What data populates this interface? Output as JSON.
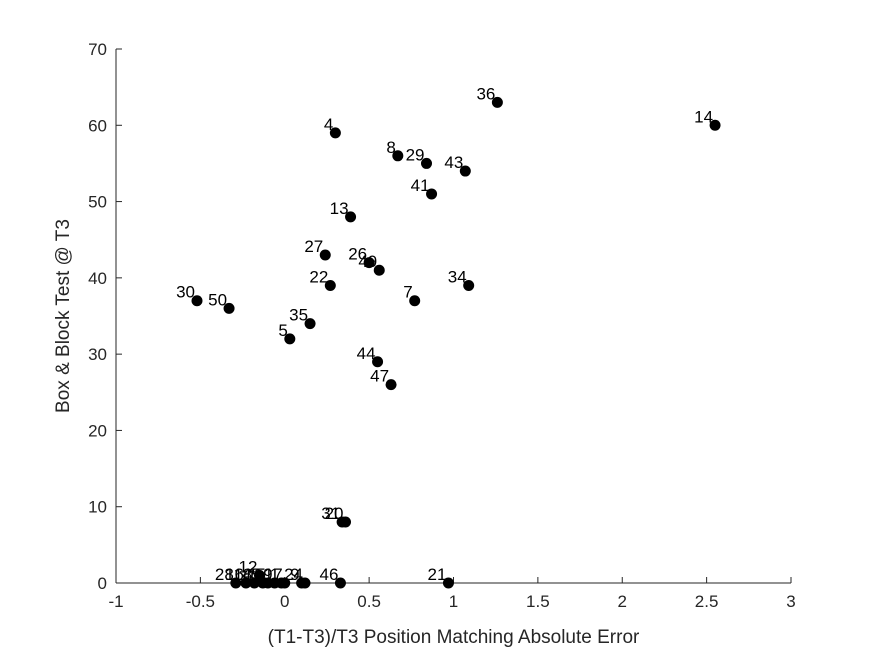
{
  "chart_data": {
    "type": "scatter",
    "xlabel": "(T1-T3)/T3 Position Matching Absolute Error",
    "ylabel": "Box & Block Test @ T3",
    "xlim": [
      -1,
      3
    ],
    "ylim": [
      0,
      70
    ],
    "xticks": [
      "-1",
      "-0.5",
      "0",
      "0.5",
      "1",
      "1.5",
      "2",
      "2.5",
      "3"
    ],
    "yticks": [
      "0",
      "10",
      "20",
      "30",
      "40",
      "50",
      "60",
      "70"
    ],
    "grid": false,
    "marker_color": "#000000",
    "points": [
      {
        "label": "36",
        "x": 1.26,
        "y": 63
      },
      {
        "label": "14",
        "x": 2.55,
        "y": 60
      },
      {
        "label": "4",
        "x": 0.3,
        "y": 59
      },
      {
        "label": "8",
        "x": 0.67,
        "y": 56
      },
      {
        "label": "29",
        "x": 0.84,
        "y": 55
      },
      {
        "label": "43",
        "x": 1.07,
        "y": 54
      },
      {
        "label": "41",
        "x": 0.87,
        "y": 51
      },
      {
        "label": "13",
        "x": 0.39,
        "y": 48
      },
      {
        "label": "27",
        "x": 0.24,
        "y": 43
      },
      {
        "label": "26",
        "x": 0.5,
        "y": 42
      },
      {
        "label": "49",
        "x": 0.56,
        "y": 41
      },
      {
        "label": "22",
        "x": 0.27,
        "y": 39
      },
      {
        "label": "34",
        "x": 1.09,
        "y": 39
      },
      {
        "label": "30",
        "x": -0.52,
        "y": 37
      },
      {
        "label": "7",
        "x": 0.77,
        "y": 37
      },
      {
        "label": "50",
        "x": -0.33,
        "y": 36
      },
      {
        "label": "35",
        "x": 0.15,
        "y": 34
      },
      {
        "label": "5",
        "x": 0.03,
        "y": 32
      },
      {
        "label": "44",
        "x": 0.55,
        "y": 29
      },
      {
        "label": "47",
        "x": 0.63,
        "y": 26
      },
      {
        "label": "31",
        "x": 0.34,
        "y": 8
      },
      {
        "label": "20",
        "x": 0.36,
        "y": 8
      },
      {
        "label": "12",
        "x": -0.15,
        "y": 1
      },
      {
        "label": "28",
        "x": -0.29,
        "y": 0
      },
      {
        "label": "16",
        "x": -0.23,
        "y": 0
      },
      {
        "label": "18",
        "x": -0.18,
        "y": 0
      },
      {
        "label": "45",
        "x": -0.13,
        "y": 0
      },
      {
        "label": "15",
        "x": -0.1,
        "y": 0
      },
      {
        "label": "19",
        "x": -0.06,
        "y": 0
      },
      {
        "label": "1",
        "x": -0.02,
        "y": 0
      },
      {
        "label": "17",
        "x": 0.0,
        "y": 0
      },
      {
        "label": "9",
        "x": 0.1,
        "y": 0
      },
      {
        "label": "24",
        "x": 0.12,
        "y": 0
      },
      {
        "label": "46",
        "x": 0.33,
        "y": 0
      },
      {
        "label": "21",
        "x": 0.97,
        "y": 0
      }
    ]
  }
}
